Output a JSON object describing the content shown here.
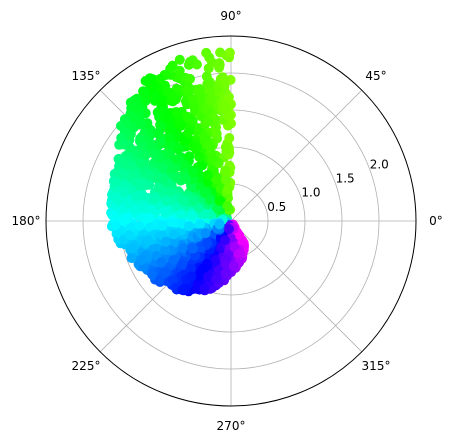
{
  "chart_data": {
    "type": "scatter",
    "projection": "polar",
    "title": "",
    "xlabel": "",
    "ylabel": "",
    "theta_ticks": [
      0,
      45,
      90,
      135,
      180,
      225,
      270,
      315
    ],
    "theta_tick_labels": [
      "0°",
      "45°",
      "90°",
      "135°",
      "180°",
      "225°",
      "270°",
      "315°"
    ],
    "r_ticks": [
      0.5,
      1.0,
      1.5,
      2.0
    ],
    "r_tick_labels": [
      "0.5",
      "1.0",
      "1.5",
      "2.0"
    ],
    "r_label_angle_deg": 22.5,
    "rlim": [
      0,
      2.5
    ],
    "grid": true,
    "legend": "none",
    "colormap": "hsv",
    "color_encodes": "theta",
    "marker": "circle",
    "point_count_estimate": 2000,
    "distribution": {
      "theta_range_deg": [
        90,
        300
      ],
      "r_max_by_theta": [
        [
          90,
          2.35
        ],
        [
          100,
          2.3
        ],
        [
          110,
          2.3
        ],
        [
          120,
          2.25
        ],
        [
          135,
          2.05
        ],
        [
          150,
          1.75
        ],
        [
          165,
          1.65
        ],
        [
          180,
          1.65
        ],
        [
          195,
          1.5
        ],
        [
          210,
          1.35
        ],
        [
          225,
          1.25
        ],
        [
          240,
          1.1
        ],
        [
          255,
          0.95
        ],
        [
          270,
          0.7
        ],
        [
          285,
          0.55
        ],
        [
          300,
          0.35
        ]
      ]
    }
  }
}
